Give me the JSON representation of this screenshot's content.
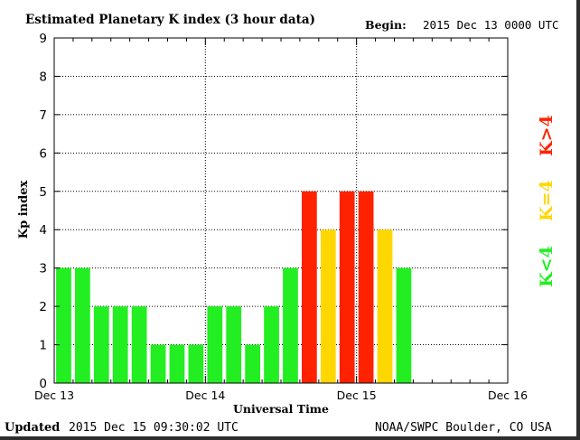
{
  "header": {
    "title": "Estimated Planetary K index (3 hour data)",
    "begin_label": "Begin:",
    "begin_value": "2015 Dec 13 0000 UTC"
  },
  "footer": {
    "updated_label": "Updated",
    "updated_value": "2015 Dec 15 09:30:02 UTC",
    "source": "NOAA/SWPC Boulder, CO USA"
  },
  "legend": [
    {
      "label": "K>4",
      "color": "#ff2200"
    },
    {
      "label": "K=4",
      "color": "#ffd700"
    },
    {
      "label": "K<4",
      "color": "#22ee22"
    }
  ],
  "chart_data": {
    "type": "bar",
    "title": "Estimated Planetary K index (3 hour data)",
    "xlabel": "Universal Time",
    "ylabel": "Kp index",
    "ylim": [
      0,
      9
    ],
    "yticks": [
      "0",
      "1",
      "2",
      "3",
      "4",
      "5",
      "6",
      "7",
      "8",
      "9"
    ],
    "xticks": [
      "Dec 13",
      "Dec 14",
      "Dec 15",
      "Dec 16"
    ],
    "interval_hours": 3,
    "values": [
      3,
      3,
      2,
      2,
      2,
      1,
      1,
      1,
      2,
      2,
      1,
      2,
      3,
      5,
      4,
      5,
      5,
      4,
      3
    ],
    "colors": {
      "low": "#22ee22",
      "equal": "#ffd700",
      "high": "#ff2200"
    },
    "grid": true
  }
}
